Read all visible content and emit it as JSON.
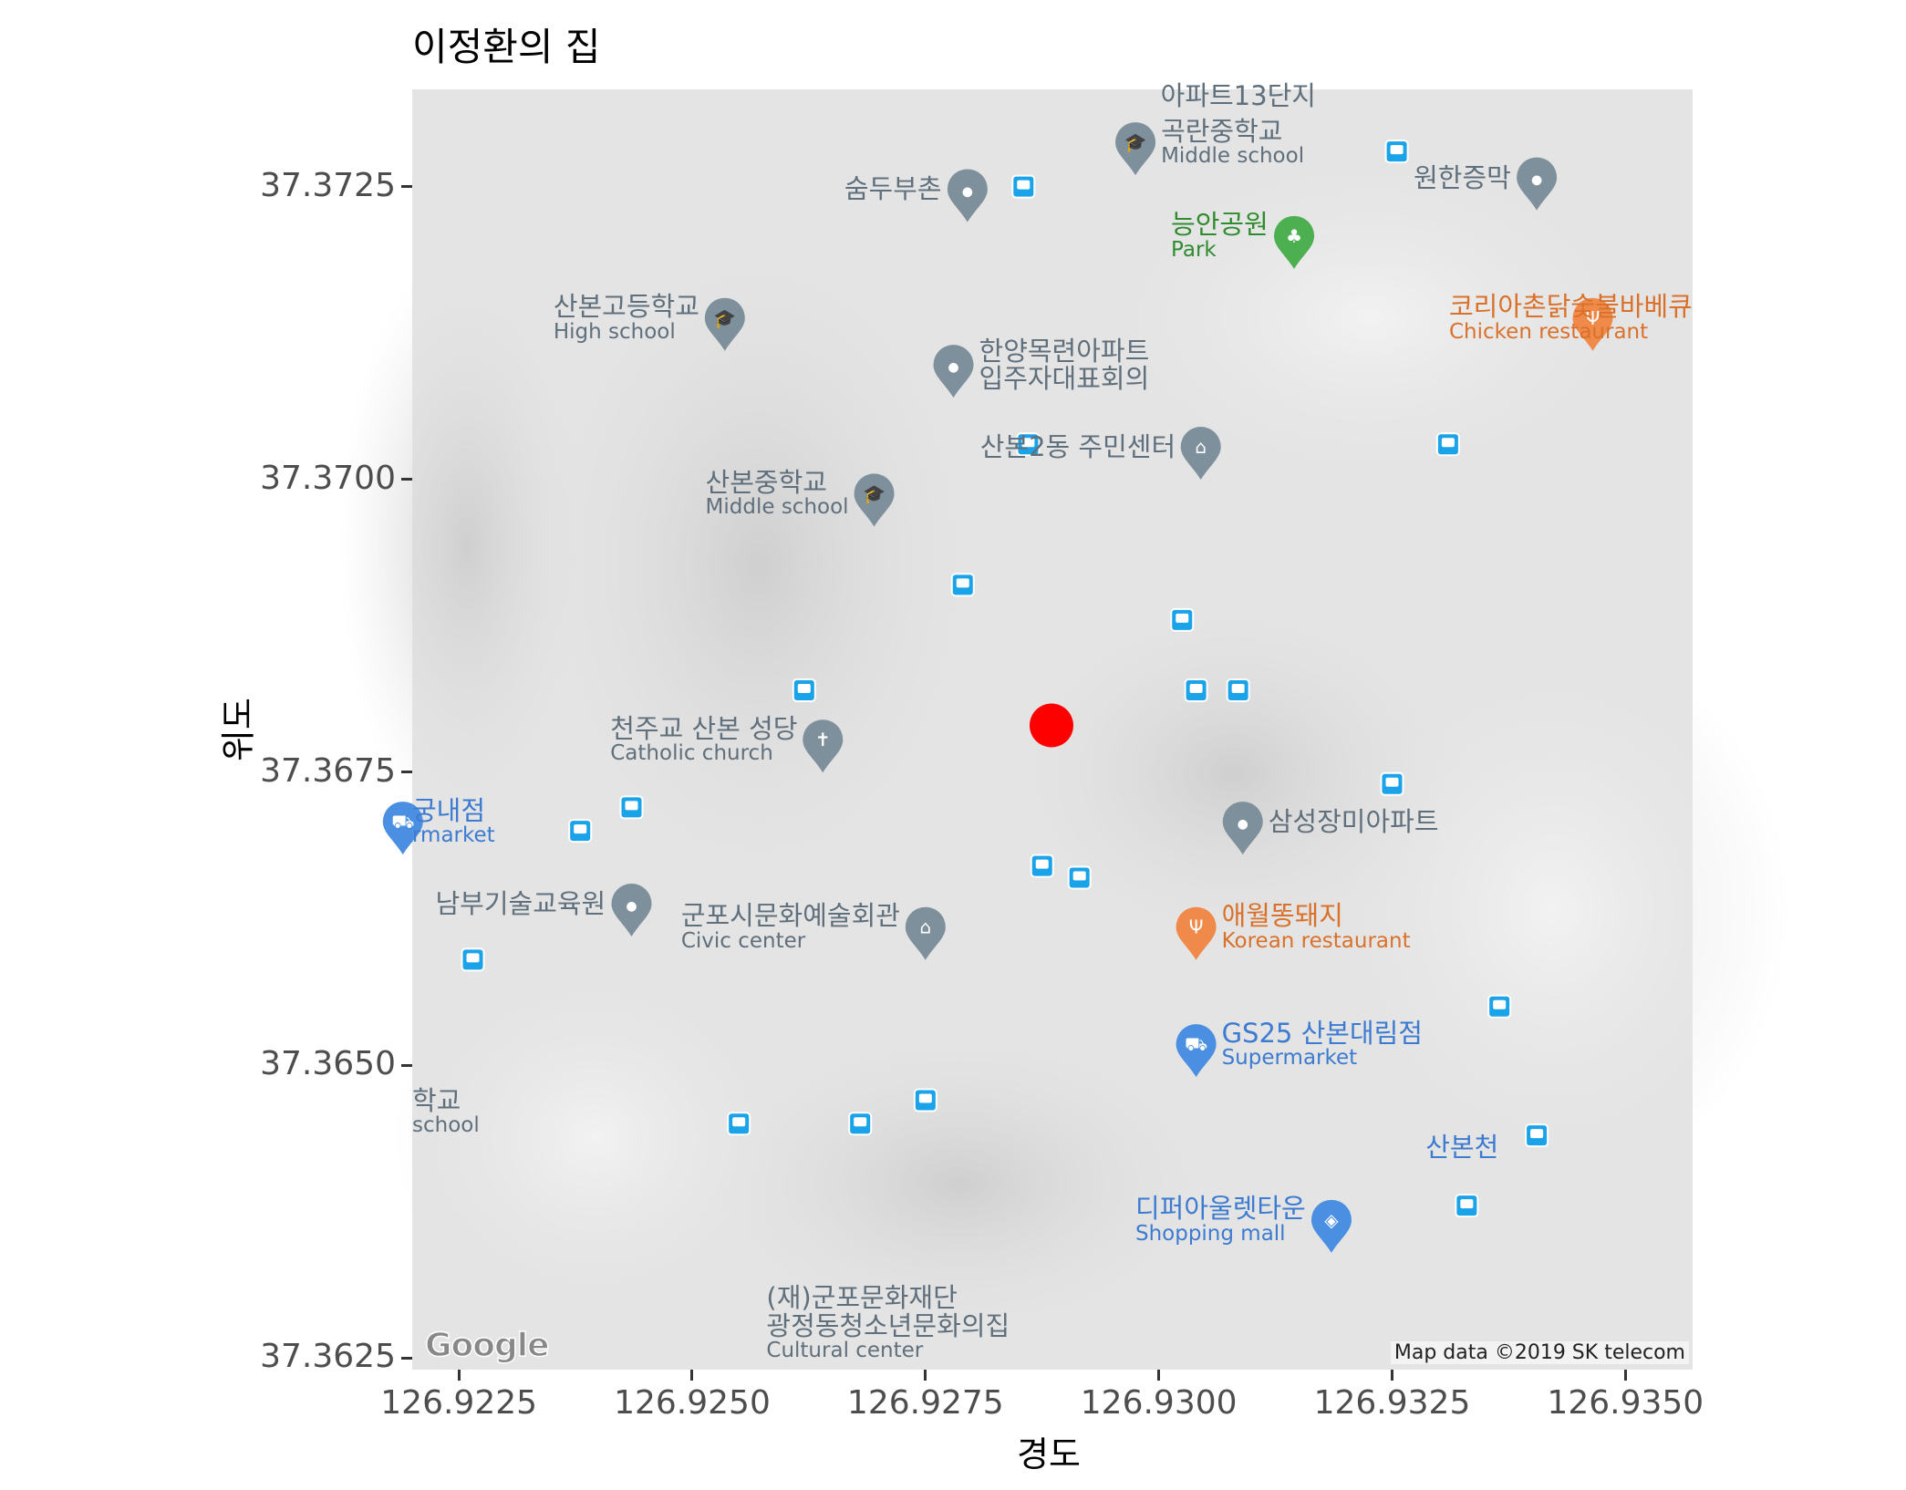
{
  "title": "이정환의 집",
  "x_axis_title": "경도",
  "y_axis_title": "위도",
  "map": {
    "attribution": "Map data ©2019 SK telecom",
    "logo": "Google",
    "marker": {
      "lon": 126.92885,
      "lat": 37.3679,
      "color": "#ff0000",
      "name": "red-dot"
    },
    "pois": [
      {
        "id": "apt13",
        "main": "아파트13단지",
        "sub": "",
        "color": "gray",
        "icon": "none",
        "lon": 126.93085,
        "lat": 37.3733
      },
      {
        "id": "gokran-middle",
        "main": "곡란중학교",
        "sub": "Middle school",
        "color": "gray",
        "icon": "school-icon",
        "lon": 126.92975,
        "lat": 37.3728
      },
      {
        "id": "sumdu",
        "main": "숨두부촌",
        "sub": "",
        "color": "gray",
        "icon": "pin-icon",
        "lon": 126.92795,
        "lat": 37.3724
      },
      {
        "id": "wonhan",
        "main": "원한증막",
        "sub": "",
        "color": "gray",
        "icon": "pin-icon",
        "lon": 126.93405,
        "lat": 37.3725
      },
      {
        "id": "neungan-park",
        "main": "능안공원",
        "sub": "Park",
        "color": "green",
        "icon": "tree-icon",
        "lon": 126.93145,
        "lat": 37.372
      },
      {
        "id": "korea-chicken",
        "main": "코리아촌닭숯불바베큐",
        "sub": "Chicken restaurant",
        "color": "orange",
        "icon": "restaurant-icon",
        "lon": 126.93465,
        "lat": 37.3713
      },
      {
        "id": "sanbon-high",
        "main": "산본고등학교",
        "sub": "High school",
        "color": "gray",
        "icon": "school-icon",
        "lon": 126.92535,
        "lat": 37.3713
      },
      {
        "id": "hanyang",
        "main": "한양목련아파트\n입주자대표회의",
        "sub": "",
        "color": "gray",
        "icon": "pin-icon",
        "lon": 126.9278,
        "lat": 37.3709
      },
      {
        "id": "sanbon2-center",
        "main": "산본2동 주민센터",
        "sub": "",
        "color": "gray",
        "icon": "gov-icon",
        "lon": 126.93045,
        "lat": 37.3702
      },
      {
        "id": "sanbon-middle",
        "main": "산본중학교",
        "sub": "Middle school",
        "color": "gray",
        "icon": "school-icon",
        "lon": 126.92695,
        "lat": 37.3698
      },
      {
        "id": "catholic",
        "main": "천주교 산본 성당",
        "sub": "Catholic church",
        "color": "gray",
        "icon": "cross-icon",
        "lon": 126.9264,
        "lat": 37.3677
      },
      {
        "id": "market-west",
        "main": "궁내점",
        "sub": "rmarket",
        "color": "blue",
        "icon": "cart-icon",
        "lon": 126.9219,
        "lat": 37.367
      },
      {
        "id": "samsung-apt",
        "main": "삼성장미아파트",
        "sub": "",
        "color": "gray",
        "icon": "pin-icon",
        "lon": 126.9309,
        "lat": 37.367
      },
      {
        "id": "nambu",
        "main": "남부기술교육원",
        "sub": "",
        "color": "gray",
        "icon": "pin-icon",
        "lon": 126.92435,
        "lat": 37.3663
      },
      {
        "id": "gunpo-arts",
        "main": "군포시문화예술회관",
        "sub": "Civic center",
        "color": "gray",
        "icon": "gov-icon",
        "lon": 126.9275,
        "lat": 37.3661
      },
      {
        "id": "aewol",
        "main": "애월똥돼지",
        "sub": "Korean restaurant",
        "color": "orange",
        "icon": "restaurant-icon",
        "lon": 126.9304,
        "lat": 37.3661
      },
      {
        "id": "gs25",
        "main": "GS25 산본대림점",
        "sub": "Supermarket",
        "color": "blue",
        "icon": "cart-icon",
        "lon": 126.9304,
        "lat": 37.3651
      },
      {
        "id": "school-west",
        "main": "학교",
        "sub": "school",
        "color": "gray",
        "icon": "none",
        "lon": 126.9223,
        "lat": 37.3646
      },
      {
        "id": "sanboncheon",
        "main": "산본천",
        "sub": "",
        "color": "blue",
        "icon": "none",
        "lon": 126.93325,
        "lat": 37.3643
      },
      {
        "id": "dipeo-outlet",
        "main": "디퍼아울렛타운",
        "sub": "Shopping mall",
        "color": "blue",
        "icon": "bag-icon",
        "lon": 126.93185,
        "lat": 37.3636
      },
      {
        "id": "gunpo-culture",
        "main": "(재)군포문화재단\n광정동청소년문화의집",
        "sub": "Cultural center",
        "color": "gray",
        "icon": "none",
        "lon": 126.9271,
        "lat": 37.3628
      }
    ],
    "bus_stops": [
      [
        126.92855,
        37.3725
      ],
      [
        126.93255,
        37.3728
      ],
      [
        126.9286,
        37.3703
      ],
      [
        126.9331,
        37.3703
      ],
      [
        126.9279,
        37.3691
      ],
      [
        126.93025,
        37.3688
      ],
      [
        126.9262,
        37.3682
      ],
      [
        126.9304,
        37.3682
      ],
      [
        126.93085,
        37.3682
      ],
      [
        126.9325,
        37.3674
      ],
      [
        126.92435,
        37.3672
      ],
      [
        126.9238,
        37.367
      ],
      [
        126.92875,
        37.3667
      ],
      [
        126.92915,
        37.3666
      ],
      [
        126.92265,
        37.3659
      ],
      [
        126.93365,
        37.3655
      ],
      [
        126.9255,
        37.3645
      ],
      [
        126.9268,
        37.3645
      ],
      [
        126.9275,
        37.3647
      ],
      [
        126.93405,
        37.3644
      ],
      [
        126.9333,
        37.3638
      ]
    ]
  },
  "axes": {
    "x_ticks": [
      {
        "value": 126.9225,
        "label": "126.9225"
      },
      {
        "value": 126.925,
        "label": "126.9250"
      },
      {
        "value": 126.9275,
        "label": "126.9275"
      },
      {
        "value": 126.93,
        "label": "126.9300"
      },
      {
        "value": 126.9325,
        "label": "126.9325"
      },
      {
        "value": 126.935,
        "label": "126.9350"
      }
    ],
    "y_ticks": [
      {
        "value": 37.3725,
        "label": "37.3725"
      },
      {
        "value": 37.37,
        "label": "37.3700"
      },
      {
        "value": 37.3675,
        "label": "37.3675"
      },
      {
        "value": 37.365,
        "label": "37.3650"
      },
      {
        "value": 37.3625,
        "label": "37.3625"
      }
    ],
    "xlim": [
      126.922,
      126.93572
    ],
    "ylim": [
      37.3624,
      37.37333
    ]
  }
}
